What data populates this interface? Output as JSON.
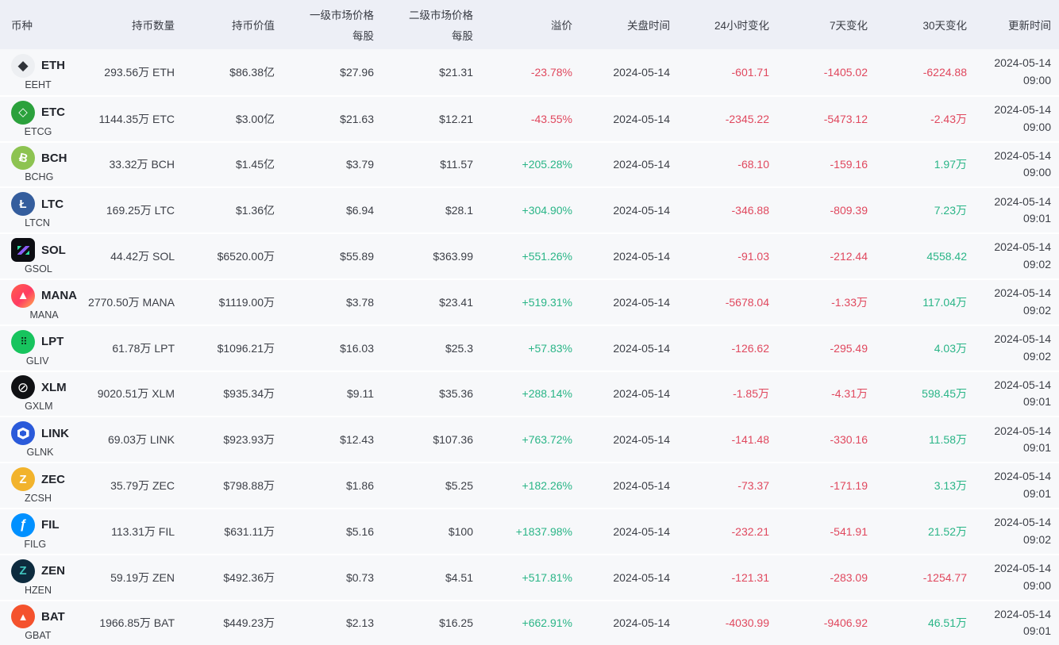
{
  "colors": {
    "up": "#2ab587",
    "down": "#e0485e",
    "header_bg": "#edeff6",
    "row_bg": "#f7f8fa"
  },
  "table": {
    "columns": [
      {
        "key": "coin",
        "label": "币种",
        "sublabel": ""
      },
      {
        "key": "amount",
        "label": "持币数量",
        "sublabel": ""
      },
      {
        "key": "value",
        "label": "持币价值",
        "sublabel": ""
      },
      {
        "key": "primary_price",
        "label": "一级市场价格",
        "sublabel": "每股"
      },
      {
        "key": "secondary_price",
        "label": "二级市场价格",
        "sublabel": "每股"
      },
      {
        "key": "premium",
        "label": "溢价",
        "sublabel": ""
      },
      {
        "key": "close_time",
        "label": "关盘时间",
        "sublabel": ""
      },
      {
        "key": "change_24h",
        "label": "24小时变化",
        "sublabel": ""
      },
      {
        "key": "change_7d",
        "label": "7天变化",
        "sublabel": ""
      },
      {
        "key": "change_30d",
        "label": "30天变化",
        "sublabel": ""
      },
      {
        "key": "update_time",
        "label": "更新时间",
        "sublabel": ""
      }
    ],
    "rows": [
      {
        "symbol": "ETH",
        "ticker": "EEHT",
        "icon": {
          "name": "eth-icon",
          "class": "eth",
          "glyph": "◆",
          "bg": "#edeff2",
          "fg": "#2f3238"
        },
        "amount": "293.56万 ETH",
        "value": "$86.38亿",
        "primary": "$27.96",
        "secondary": "$21.31",
        "premium": {
          "text": "-23.78%",
          "dir": "down"
        },
        "close": "2024-05-14",
        "change_24h": {
          "text": "-601.71",
          "dir": "down"
        },
        "change_7d": {
          "text": "-1405.02",
          "dir": "down"
        },
        "change_30d": {
          "text": "-6224.88",
          "dir": "down"
        },
        "update": {
          "date": "2024-05-14",
          "time": "09:00"
        }
      },
      {
        "symbol": "ETC",
        "ticker": "ETCG",
        "icon": {
          "name": "etc-icon",
          "class": "etc",
          "glyph": "◇",
          "bg": "#2ba13c",
          "fg": "#ffffff"
        },
        "amount": "1144.35万 ETC",
        "value": "$3.00亿",
        "primary": "$21.63",
        "secondary": "$12.21",
        "premium": {
          "text": "-43.55%",
          "dir": "down"
        },
        "close": "2024-05-14",
        "change_24h": {
          "text": "-2345.22",
          "dir": "down"
        },
        "change_7d": {
          "text": "-5473.12",
          "dir": "down"
        },
        "change_30d": {
          "text": "-2.43万",
          "dir": "down"
        },
        "update": {
          "date": "2024-05-14",
          "time": "09:00"
        }
      },
      {
        "symbol": "BCH",
        "ticker": "BCHG",
        "icon": {
          "name": "bch-icon",
          "class": "bch",
          "glyph": "Ƀ",
          "bg": "#8dc351",
          "fg": "#ffffff"
        },
        "amount": "33.32万 BCH",
        "value": "$1.45亿",
        "primary": "$3.79",
        "secondary": "$11.57",
        "premium": {
          "text": "+205.28%",
          "dir": "up"
        },
        "close": "2024-05-14",
        "change_24h": {
          "text": "-68.10",
          "dir": "down"
        },
        "change_7d": {
          "text": "-159.16",
          "dir": "down"
        },
        "change_30d": {
          "text": "1.97万",
          "dir": "up"
        },
        "update": {
          "date": "2024-05-14",
          "time": "09:00"
        }
      },
      {
        "symbol": "LTC",
        "ticker": "LTCN",
        "icon": {
          "name": "ltc-icon",
          "class": "ltc",
          "glyph": "Ł",
          "bg": "#345d9d",
          "fg": "#ffffff"
        },
        "amount": "169.25万 LTC",
        "value": "$1.36亿",
        "primary": "$6.94",
        "secondary": "$28.1",
        "premium": {
          "text": "+304.90%",
          "dir": "up"
        },
        "close": "2024-05-14",
        "change_24h": {
          "text": "-346.88",
          "dir": "down"
        },
        "change_7d": {
          "text": "-809.39",
          "dir": "down"
        },
        "change_30d": {
          "text": "7.23万",
          "dir": "up"
        },
        "update": {
          "date": "2024-05-14",
          "time": "09:01"
        }
      },
      {
        "symbol": "SOL",
        "ticker": "GSOL",
        "icon": {
          "name": "sol-icon",
          "class": "sol",
          "glyph": "≣",
          "bg": "#0c0d12",
          "fg": "#2de0a5"
        },
        "amount": "44.42万 SOL",
        "value": "$6520.00万",
        "primary": "$55.89",
        "secondary": "$363.99",
        "premium": {
          "text": "+551.26%",
          "dir": "up"
        },
        "close": "2024-05-14",
        "change_24h": {
          "text": "-91.03",
          "dir": "down"
        },
        "change_7d": {
          "text": "-212.44",
          "dir": "down"
        },
        "change_30d": {
          "text": "4558.42",
          "dir": "up"
        },
        "update": {
          "date": "2024-05-14",
          "time": "09:02"
        }
      },
      {
        "symbol": "MANA",
        "ticker": "MANA",
        "icon": {
          "name": "mana-icon",
          "class": "mana",
          "glyph": "▲",
          "bg": "linear-gradient(135deg,#ff5f4a,#ff3b63 55%,#ffb14d)",
          "fg": "#ffffff"
        },
        "amount": "2770.50万 MANA",
        "value": "$1119.00万",
        "primary": "$3.78",
        "secondary": "$23.41",
        "premium": {
          "text": "+519.31%",
          "dir": "up"
        },
        "close": "2024-05-14",
        "change_24h": {
          "text": "-5678.04",
          "dir": "down"
        },
        "change_7d": {
          "text": "-1.33万",
          "dir": "down"
        },
        "change_30d": {
          "text": "117.04万",
          "dir": "up"
        },
        "update": {
          "date": "2024-05-14",
          "time": "09:02"
        }
      },
      {
        "symbol": "LPT",
        "ticker": "GLIV",
        "icon": {
          "name": "lpt-icon",
          "class": "lpt",
          "glyph": "⠿",
          "bg": "#17c45e",
          "fg": "#0a2012"
        },
        "amount": "61.78万 LPT",
        "value": "$1096.21万",
        "primary": "$16.03",
        "secondary": "$25.3",
        "premium": {
          "text": "+57.83%",
          "dir": "up"
        },
        "close": "2024-05-14",
        "change_24h": {
          "text": "-126.62",
          "dir": "down"
        },
        "change_7d": {
          "text": "-295.49",
          "dir": "down"
        },
        "change_30d": {
          "text": "4.03万",
          "dir": "up"
        },
        "update": {
          "date": "2024-05-14",
          "time": "09:02"
        }
      },
      {
        "symbol": "XLM",
        "ticker": "GXLM",
        "icon": {
          "name": "xlm-icon",
          "class": "xlm",
          "glyph": "⊘",
          "bg": "#101114",
          "fg": "#ffffff"
        },
        "amount": "9020.51万 XLM",
        "value": "$935.34万",
        "primary": "$9.11",
        "secondary": "$35.36",
        "premium": {
          "text": "+288.14%",
          "dir": "up"
        },
        "close": "2024-05-14",
        "change_24h": {
          "text": "-1.85万",
          "dir": "down"
        },
        "change_7d": {
          "text": "-4.31万",
          "dir": "down"
        },
        "change_30d": {
          "text": "598.45万",
          "dir": "up"
        },
        "update": {
          "date": "2024-05-14",
          "time": "09:01"
        }
      },
      {
        "symbol": "LINK",
        "ticker": "GLNK",
        "icon": {
          "name": "link-icon",
          "class": "link",
          "glyph": "⬡",
          "bg": "#2a5ada",
          "fg": "#ffffff"
        },
        "amount": "69.03万 LINK",
        "value": "$923.93万",
        "primary": "$12.43",
        "secondary": "$107.36",
        "premium": {
          "text": "+763.72%",
          "dir": "up"
        },
        "close": "2024-05-14",
        "change_24h": {
          "text": "-141.48",
          "dir": "down"
        },
        "change_7d": {
          "text": "-330.16",
          "dir": "down"
        },
        "change_30d": {
          "text": "11.58万",
          "dir": "up"
        },
        "update": {
          "date": "2024-05-14",
          "time": "09:01"
        }
      },
      {
        "symbol": "ZEC",
        "ticker": "ZCSH",
        "icon": {
          "name": "zec-icon",
          "class": "zec",
          "glyph": "Z",
          "bg": "#f2b32c",
          "fg": "#ffffff"
        },
        "amount": "35.79万 ZEC",
        "value": "$798.88万",
        "primary": "$1.86",
        "secondary": "$5.25",
        "premium": {
          "text": "+182.26%",
          "dir": "up"
        },
        "close": "2024-05-14",
        "change_24h": {
          "text": "-73.37",
          "dir": "down"
        },
        "change_7d": {
          "text": "-171.19",
          "dir": "down"
        },
        "change_30d": {
          "text": "3.13万",
          "dir": "up"
        },
        "update": {
          "date": "2024-05-14",
          "time": "09:01"
        }
      },
      {
        "symbol": "FIL",
        "ticker": "FILG",
        "icon": {
          "name": "fil-icon",
          "class": "fil",
          "glyph": "ƒ",
          "bg": "#0090ff",
          "fg": "#ffffff"
        },
        "amount": "113.31万 FIL",
        "value": "$631.11万",
        "primary": "$5.16",
        "secondary": "$100",
        "premium": {
          "text": "+1837.98%",
          "dir": "up"
        },
        "close": "2024-05-14",
        "change_24h": {
          "text": "-232.21",
          "dir": "down"
        },
        "change_7d": {
          "text": "-541.91",
          "dir": "down"
        },
        "change_30d": {
          "text": "21.52万",
          "dir": "up"
        },
        "update": {
          "date": "2024-05-14",
          "time": "09:02"
        }
      },
      {
        "symbol": "ZEN",
        "ticker": "HZEN",
        "icon": {
          "name": "zen-icon",
          "class": "zen",
          "glyph": "Z",
          "bg": "#0d2b3e",
          "fg": "#41c6c0"
        },
        "amount": "59.19万 ZEN",
        "value": "$492.36万",
        "primary": "$0.73",
        "secondary": "$4.51",
        "premium": {
          "text": "+517.81%",
          "dir": "up"
        },
        "close": "2024-05-14",
        "change_24h": {
          "text": "-121.31",
          "dir": "down"
        },
        "change_7d": {
          "text": "-283.09",
          "dir": "down"
        },
        "change_30d": {
          "text": "-1254.77",
          "dir": "down"
        },
        "update": {
          "date": "2024-05-14",
          "time": "09:00"
        }
      },
      {
        "symbol": "BAT",
        "ticker": "GBAT",
        "icon": {
          "name": "bat-icon",
          "class": "bat",
          "glyph": "▲",
          "bg": "#f4522d",
          "fg": "#ffffff"
        },
        "amount": "1966.85万 BAT",
        "value": "$449.23万",
        "primary": "$2.13",
        "secondary": "$16.25",
        "premium": {
          "text": "+662.91%",
          "dir": "up"
        },
        "close": "2024-05-14",
        "change_24h": {
          "text": "-4030.99",
          "dir": "down"
        },
        "change_7d": {
          "text": "-9406.92",
          "dir": "down"
        },
        "change_30d": {
          "text": "46.51万",
          "dir": "up"
        },
        "update": {
          "date": "2024-05-14",
          "time": "09:01"
        }
      }
    ]
  }
}
